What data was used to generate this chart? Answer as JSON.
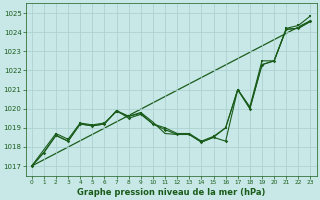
{
  "title": "Graphe pression niveau de la mer (hPa)",
  "bg_color": "#c8e8e8",
  "grid_color": "#a8cece",
  "line_color": "#1a5c1a",
  "xlim": [
    -0.5,
    23.5
  ],
  "ylim": [
    1016.5,
    1025.5
  ],
  "yticks": [
    1017,
    1018,
    1019,
    1020,
    1021,
    1022,
    1023,
    1024,
    1025
  ],
  "xticks": [
    0,
    1,
    2,
    3,
    4,
    5,
    6,
    7,
    8,
    9,
    10,
    11,
    12,
    13,
    14,
    15,
    16,
    17,
    18,
    19,
    20,
    21,
    22,
    23
  ],
  "trend_x": [
    0,
    23
  ],
  "trend_y": [
    1017.0,
    1024.6
  ],
  "line1_x": [
    0,
    1,
    2,
    3,
    4,
    5,
    6,
    7,
    8,
    9,
    10,
    11,
    12,
    13,
    14,
    15,
    16,
    17,
    18,
    19,
    20,
    21,
    22,
    23
  ],
  "line1_y": [
    1017.0,
    1017.7,
    1018.6,
    1018.3,
    1019.2,
    1019.1,
    1019.2,
    1019.9,
    1019.5,
    1019.7,
    1019.2,
    1018.9,
    1018.65,
    1018.65,
    1018.25,
    1018.5,
    1018.3,
    1021.0,
    1020.0,
    1022.3,
    1022.5,
    1024.15,
    1024.2,
    1024.6
  ],
  "line2_x": [
    0,
    2,
    3,
    4,
    5,
    6,
    7,
    8,
    9,
    10,
    11,
    12,
    13,
    14,
    15,
    16,
    17,
    18,
    19,
    20,
    21,
    22,
    23
  ],
  "line2_y": [
    1017.0,
    1018.7,
    1018.4,
    1019.25,
    1019.15,
    1019.25,
    1019.85,
    1019.6,
    1019.75,
    1019.2,
    1019.0,
    1018.7,
    1018.7,
    1018.3,
    1018.55,
    1019.0,
    1021.0,
    1020.1,
    1022.5,
    1022.5,
    1024.2,
    1024.35,
    1024.85
  ],
  "line3_x": [
    0,
    1,
    2,
    3,
    4,
    5,
    6,
    7,
    8,
    9,
    10,
    11,
    12,
    13,
    14,
    15,
    16,
    17,
    18,
    19,
    20,
    21,
    22,
    23
  ],
  "line3_y": [
    1017.0,
    1017.7,
    1018.6,
    1018.3,
    1019.2,
    1019.1,
    1019.2,
    1019.9,
    1019.6,
    1019.8,
    1019.3,
    1018.7,
    1018.65,
    1018.65,
    1018.25,
    1018.5,
    1019.0,
    1021.0,
    1020.0,
    1022.3,
    1022.5,
    1024.15,
    1024.2,
    1024.55
  ]
}
